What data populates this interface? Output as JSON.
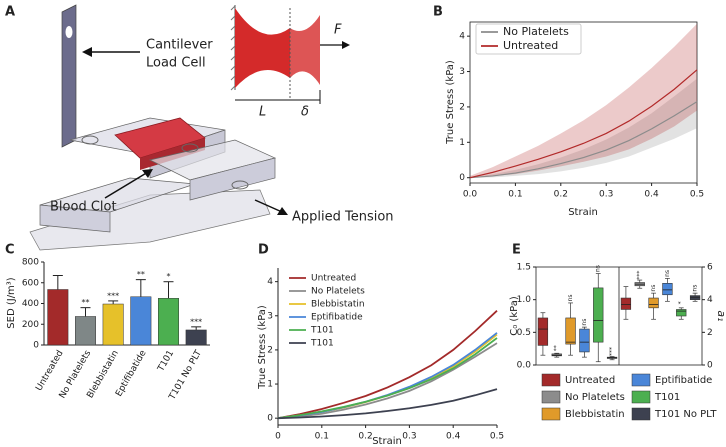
{
  "diagram": {
    "panel": "A",
    "cantilever_label": [
      "Cantilever",
      "Load Cell"
    ],
    "clot_label": "Blood Clot",
    "tension_label": "Applied Tension",
    "force_label": "F",
    "length_label": "L",
    "delta_label": "δ"
  },
  "chart_data": [
    {
      "type": "line",
      "panel": "B",
      "xlabel": "Strain",
      "ylabel": "True Stress (kPa)",
      "legend": "top-left",
      "legend_frame": true,
      "x": [
        0,
        0.05,
        0.1,
        0.15,
        0.2,
        0.25,
        0.3,
        0.35,
        0.4,
        0.45,
        0.5
      ],
      "xlim": [
        0,
        0.5
      ],
      "xticks": [
        {
          "value": 0,
          "label": "0.0"
        },
        0.1,
        0.2,
        0.3,
        0.4,
        0.5
      ],
      "ylim": [
        -0.15,
        4.4
      ],
      "yticks": [
        0,
        1,
        2,
        3,
        4
      ],
      "series": [
        {
          "name": "No Platelets",
          "color": "#8c8c8c",
          "values": [
            0,
            0.05,
            0.13,
            0.25,
            0.4,
            0.57,
            0.78,
            1.05,
            1.38,
            1.75,
            2.15
          ],
          "upper": [
            0,
            0.1,
            0.22,
            0.38,
            0.57,
            0.8,
            1.08,
            1.42,
            1.82,
            2.3,
            2.8
          ],
          "lower": [
            0,
            0.01,
            0.05,
            0.1,
            0.18,
            0.28,
            0.42,
            0.6,
            0.85,
            1.1,
            1.4
          ]
        },
        {
          "name": "Untreated",
          "color": "#b22a2a",
          "values": [
            0,
            0.15,
            0.33,
            0.52,
            0.73,
            0.97,
            1.25,
            1.6,
            2.02,
            2.5,
            3.05
          ],
          "upper": [
            0.05,
            0.3,
            0.6,
            0.9,
            1.25,
            1.62,
            2.05,
            2.55,
            3.1,
            3.7,
            4.35
          ],
          "lower": [
            0,
            0.05,
            0.1,
            0.2,
            0.32,
            0.45,
            0.6,
            0.8,
            1.1,
            1.45,
            1.9
          ]
        }
      ]
    },
    {
      "type": "bar",
      "panel": "C",
      "ylabel": "SED (J/m³)",
      "categories": [
        "Untreated",
        "No Platelets",
        "Blebbistatin",
        "Eptifibatide",
        "T101",
        "T101 No PLT"
      ],
      "values": [
        535,
        275,
        395,
        465,
        450,
        145
      ],
      "errors": [
        135,
        85,
        30,
        165,
        160,
        30
      ],
      "colors": [
        "#a32a2a",
        "#7f8787",
        "#e6c12a",
        "#4a86d8",
        "#4caf50",
        "#3d4150"
      ],
      "annotations": [
        null,
        "**",
        "***",
        "**",
        "*",
        "***"
      ],
      "ylim": [
        0,
        800
      ],
      "yticks": [
        0,
        200,
        400,
        600,
        800
      ]
    },
    {
      "type": "line",
      "panel": "D",
      "xlabel": "Strain",
      "ylabel": "True Stress (kPa)",
      "legend": "top-left",
      "legend_frame": false,
      "x": [
        0,
        0.05,
        0.1,
        0.15,
        0.2,
        0.25,
        0.3,
        0.35,
        0.4,
        0.45,
        0.5
      ],
      "xlim": [
        0,
        0.5
      ],
      "xticks": [
        0,
        0.1,
        0.2,
        0.3,
        0.4,
        0.5
      ],
      "ylim": [
        -0.2,
        4.4
      ],
      "yticks": [
        0,
        1,
        2,
        3,
        4
      ],
      "series": [
        {
          "name": "Untreated",
          "color": "#a32a2a",
          "values": [
            0,
            0.12,
            0.27,
            0.45,
            0.65,
            0.9,
            1.2,
            1.55,
            2.0,
            2.55,
            3.15
          ]
        },
        {
          "name": "No Platelets",
          "color": "#8c8c8c",
          "values": [
            0,
            0.05,
            0.13,
            0.25,
            0.4,
            0.58,
            0.8,
            1.08,
            1.42,
            1.8,
            2.2
          ]
        },
        {
          "name": "Blebbistatin",
          "color": "#e6c12a",
          "values": [
            0,
            0.08,
            0.18,
            0.31,
            0.47,
            0.67,
            0.9,
            1.18,
            1.52,
            1.95,
            2.45
          ]
        },
        {
          "name": "Eptifibatide",
          "color": "#4a86d8",
          "values": [
            0,
            0.08,
            0.18,
            0.32,
            0.48,
            0.68,
            0.92,
            1.21,
            1.56,
            2.0,
            2.5
          ]
        },
        {
          "name": "T101",
          "color": "#4caf50",
          "values": [
            0,
            0.09,
            0.2,
            0.33,
            0.48,
            0.66,
            0.88,
            1.14,
            1.46,
            1.87,
            2.35
          ]
        },
        {
          "name": "T101",
          "color": "#3d4150",
          "values": [
            0,
            0.02,
            0.05,
            0.09,
            0.14,
            0.21,
            0.29,
            0.39,
            0.51,
            0.67,
            0.85
          ]
        }
      ]
    },
    {
      "type": "box",
      "panel": "E",
      "ylabel": "C₀ (kPa)",
      "y2label": "a₁",
      "categories": [
        "Untreated",
        "No Platelets",
        "Blebbistatin",
        "Eptifibatide",
        "T101",
        "T101 No PLT"
      ],
      "colors": [
        "#a32a2a",
        "#8c8c8c",
        "#e09a2a",
        "#4a86d8",
        "#4caf50",
        "#3d4150"
      ],
      "ylim": [
        0,
        1.5
      ],
      "yticks": [
        {
          "value": 0,
          "label": "0.0"
        },
        0.5,
        {
          "value": 1,
          "label": "1.0"
        },
        1.5
      ],
      "y2lim": [
        0,
        6
      ],
      "y2ticks": [
        0,
        2,
        4,
        6
      ],
      "left": {
        "min": [
          0.15,
          0.12,
          0.15,
          0.12,
          0.05,
          0.08
        ],
        "q1": [
          0.3,
          0.14,
          0.32,
          0.2,
          0.35,
          0.1
        ],
        "median": [
          0.55,
          0.15,
          0.35,
          0.35,
          0.68,
          0.11
        ],
        "q3": [
          0.72,
          0.17,
          0.72,
          0.55,
          1.18,
          0.12
        ],
        "max": [
          0.8,
          0.18,
          0.95,
          0.58,
          1.4,
          0.13
        ],
        "annotations": [
          null,
          "**",
          "ns",
          "ns",
          "ns",
          "***"
        ]
      },
      "right": {
        "axis": "y2",
        "min": [
          2.8,
          4.7,
          2.8,
          3.9,
          2.8,
          3.9
        ],
        "q1": [
          3.4,
          4.85,
          3.5,
          4.3,
          3.0,
          4.0
        ],
        "median": [
          3.7,
          4.95,
          3.7,
          4.6,
          3.3,
          4.15
        ],
        "q3": [
          4.1,
          5.05,
          4.1,
          5.0,
          3.4,
          4.25
        ],
        "max": [
          4.8,
          5.2,
          4.4,
          5.3,
          3.5,
          4.4
        ],
        "annotations": [
          null,
          "***",
          "ns",
          "ns",
          "*",
          "ns"
        ]
      }
    }
  ]
}
